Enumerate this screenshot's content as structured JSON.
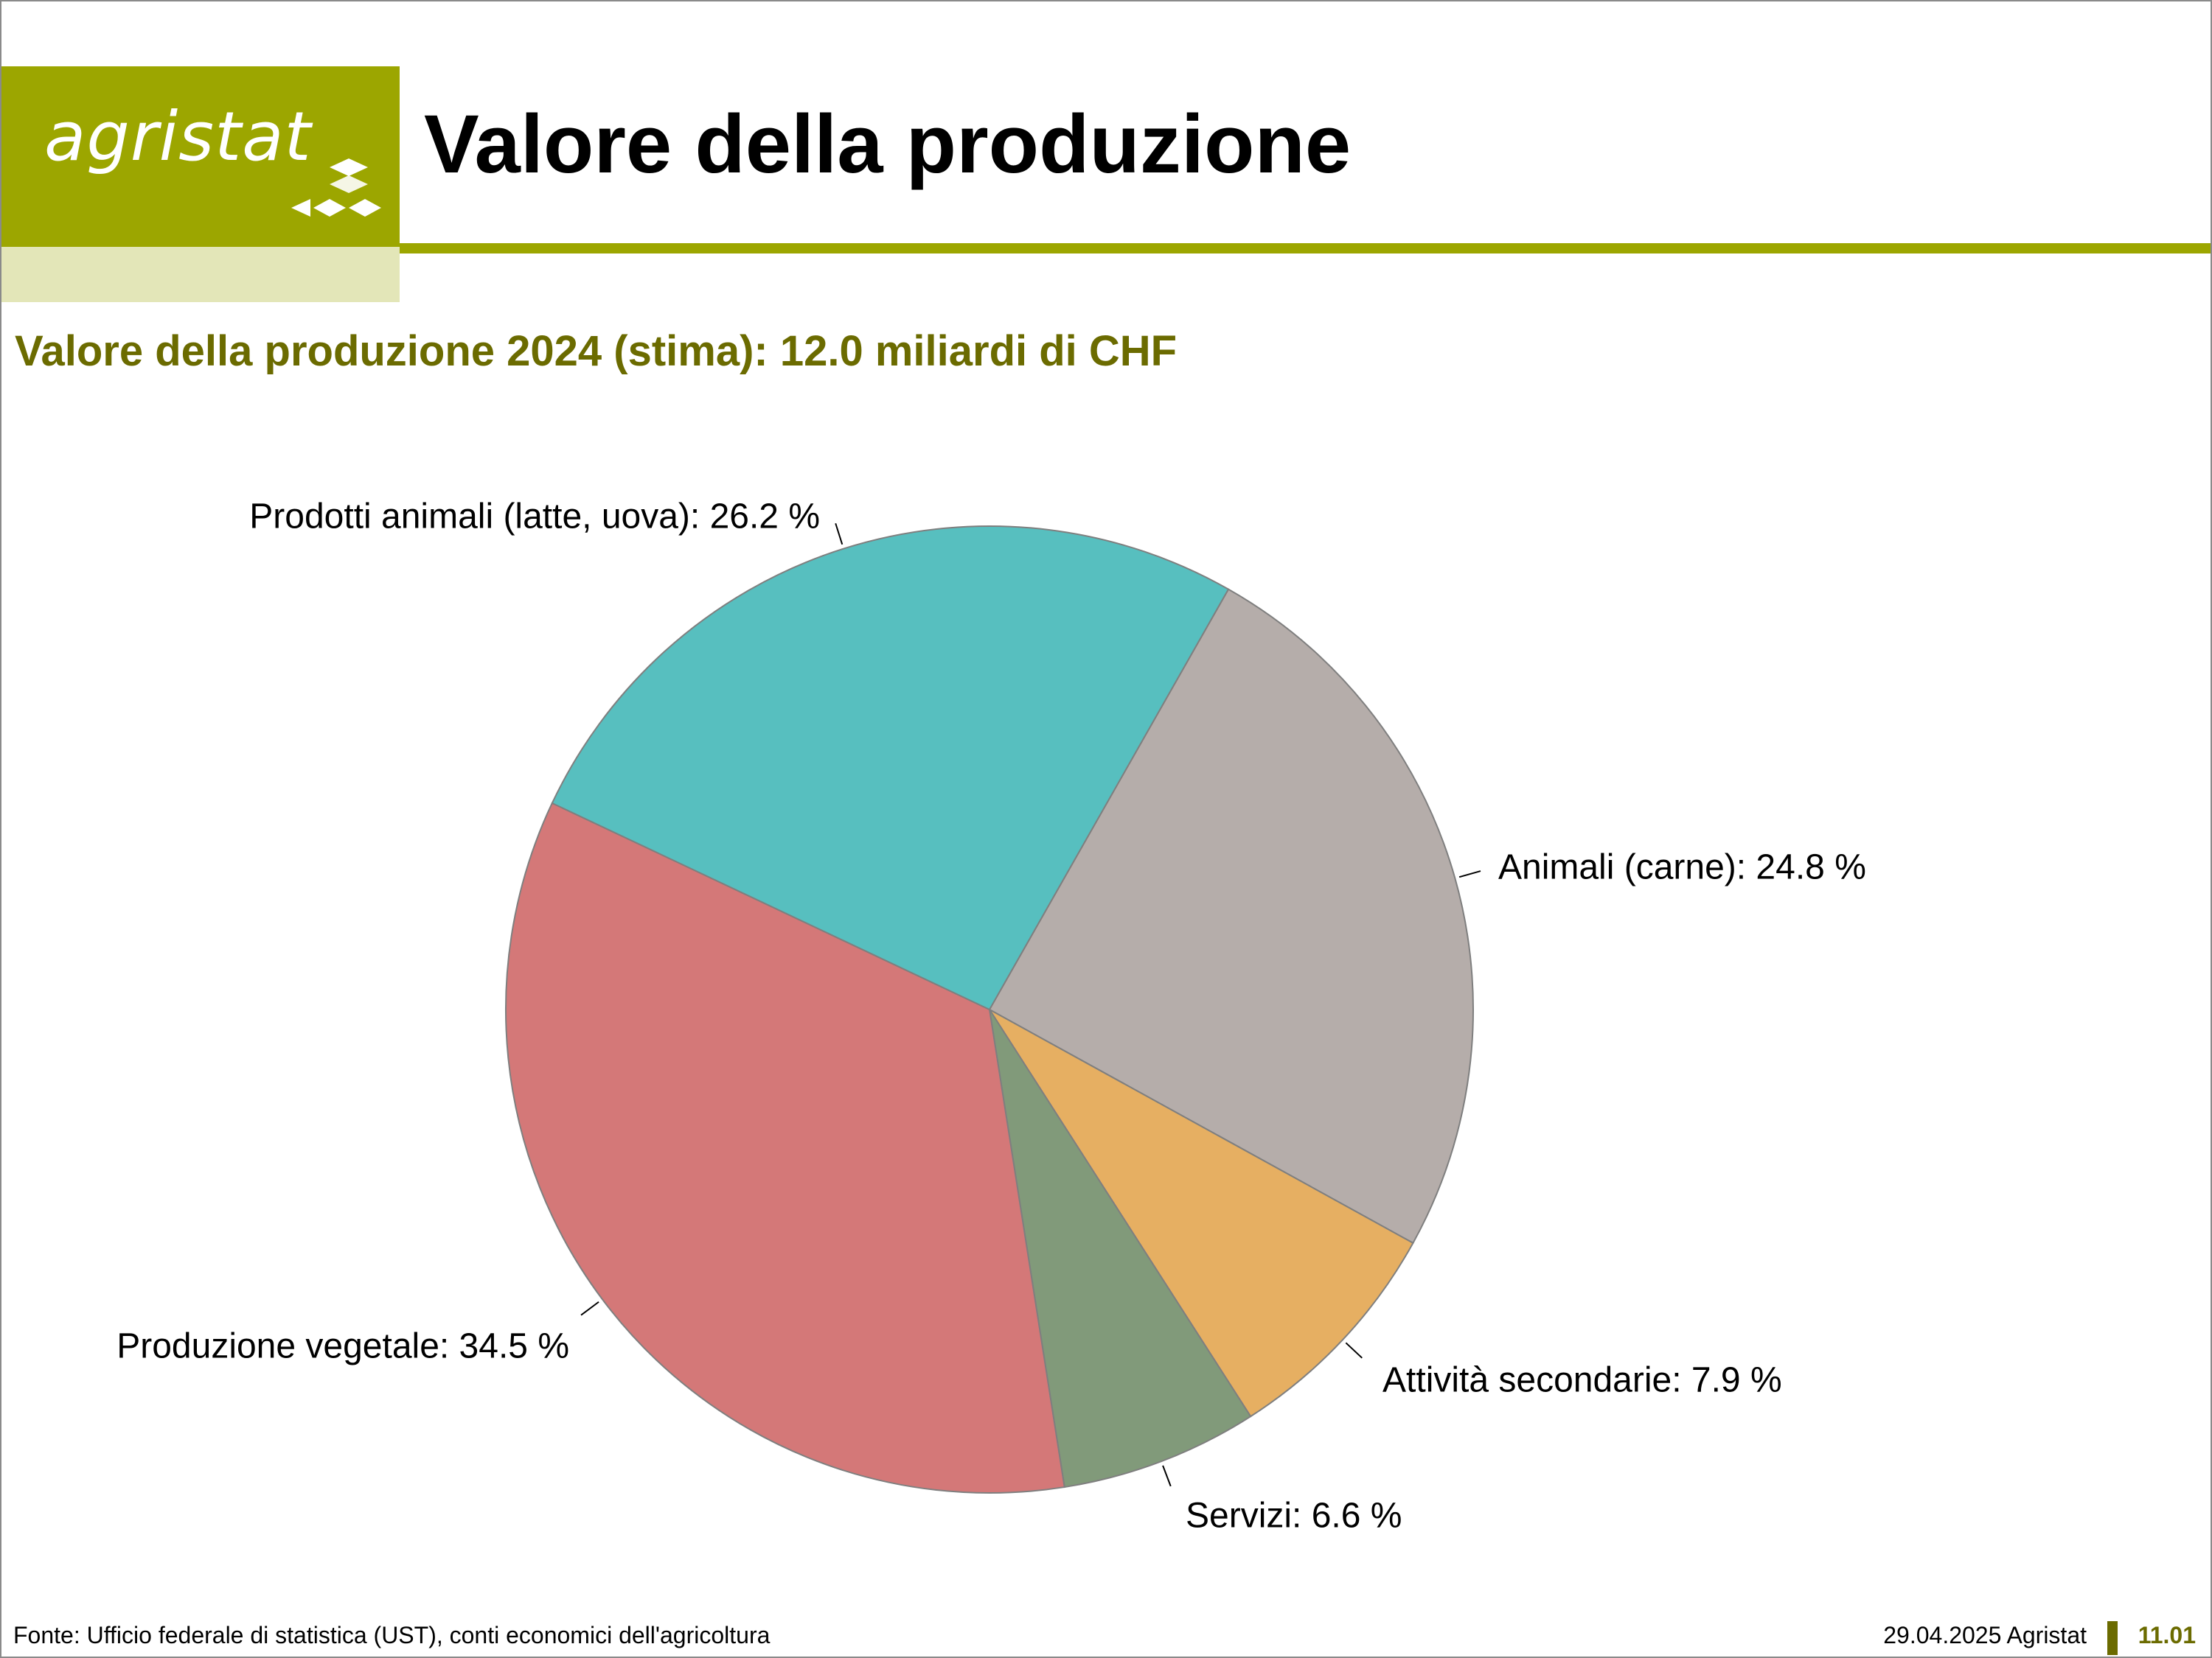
{
  "header": {
    "logo_text": "agristat",
    "title": "Valore della produzione",
    "brand_color": "#9ca600"
  },
  "chart_data": {
    "type": "pie",
    "title": "Valore della produzione 2024 (stima): 12.0 miliardi di CHF",
    "slices": [
      {
        "label": "Animali (carne): 24.8 %",
        "name": "Animali (carne)",
        "value": 24.8,
        "color": "#b5adaa"
      },
      {
        "label": "Attività secondarie: 7.9 %",
        "name": "Attività secondarie",
        "value": 7.9,
        "color": "#e6af62"
      },
      {
        "label": "Servizi: 6.6 %",
        "name": "Servizi",
        "value": 6.6,
        "color": "#819a7a"
      },
      {
        "label": "Produzione vegetale: 34.5 %",
        "name": "Produzione vegetale",
        "value": 34.5,
        "color": "#d47878"
      },
      {
        "label": "Prodotti animali (latte, uova): 26.2 %",
        "name": "Prodotti animali (latte, uova)",
        "value": 26.2,
        "color": "#57bfbf"
      }
    ],
    "start_angle_deg": 29.6,
    "direction": "clockwise"
  },
  "footer": {
    "source": "Fonte: Ufficio federale di statistica (UST), conti economici dell'agricoltura",
    "date": "29.04.2025 Agristat",
    "page": "11.01"
  }
}
